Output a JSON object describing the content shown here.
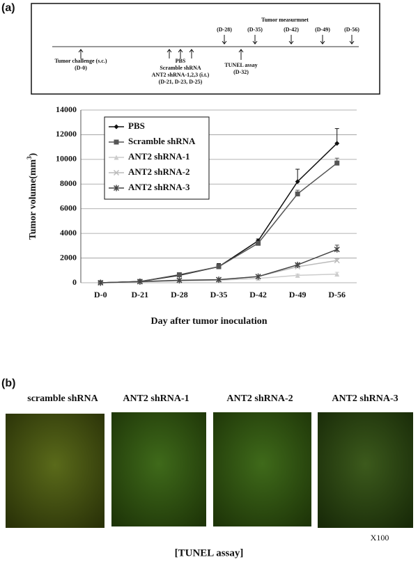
{
  "panel_a_label": "(a)",
  "panel_b_label": "(b)",
  "timeline": {
    "header": "Tumor measurmnet",
    "top_labels": [
      "(D-28)",
      "(D-35)",
      "(D-42)",
      "(D-49)",
      "(D-56)"
    ],
    "challenge": [
      "Tumor challenge (s.c.)",
      "(D-0)"
    ],
    "treatment": [
      "PBS",
      "Scramble shRNA",
      "ANT2 shRNA-1,2,3 (i.t.)",
      "(D-21, D-23, D-25)"
    ],
    "tunel": [
      "TUNEL assay",
      "(D-32)"
    ]
  },
  "chart_data": {
    "type": "line",
    "y_label": {
      "text": "Tumor volume(mm",
      "sup": "3",
      "end": ")"
    },
    "x_label": "Day after tumor inoculation",
    "categories": [
      "D-0",
      "D-21",
      "D-28",
      "D-35",
      "D-42",
      "D-49",
      "D-56"
    ],
    "ylim": [
      0,
      14000
    ],
    "yticks": [
      0,
      2000,
      4000,
      6000,
      8000,
      10000,
      12000,
      14000
    ],
    "grid": true,
    "legend": "top-left",
    "series": [
      {
        "name": "PBS",
        "color": "#111111",
        "marker": "diamond",
        "values": [
          0,
          100,
          600,
          1300,
          3400,
          8200,
          11300
        ],
        "errors": [
          0,
          0,
          100,
          250,
          150,
          1000,
          1200
        ]
      },
      {
        "name": "Scramble shRNA",
        "color": "#555555",
        "marker": "square",
        "values": [
          0,
          100,
          650,
          1300,
          3200,
          7200,
          9700
        ],
        "errors": [
          0,
          0,
          100,
          200,
          150,
          300,
          400
        ]
      },
      {
        "name": "ANT2 shRNA-1",
        "color": "#cccccc",
        "marker": "triangle",
        "values": [
          0,
          80,
          150,
          200,
          350,
          600,
          700
        ],
        "errors": [
          0,
          0,
          0,
          0,
          0,
          100,
          150
        ]
      },
      {
        "name": "ANT2 shRNA-2",
        "color": "#bbbbbb",
        "marker": "x",
        "values": [
          0,
          80,
          200,
          250,
          500,
          1300,
          1800
        ],
        "errors": [
          0,
          0,
          0,
          0,
          0,
          100,
          150
        ]
      },
      {
        "name": "ANT2 shRNA-3",
        "color": "#444444",
        "marker": "star",
        "values": [
          0,
          90,
          200,
          250,
          500,
          1450,
          2700
        ],
        "errors": [
          0,
          0,
          0,
          0,
          0,
          100,
          350
        ]
      }
    ]
  },
  "images": {
    "titles": [
      "scramble shRNA",
      "ANT2 shRNA-1",
      "ANT2 shRNA-2",
      "ANT2 shRNA-3"
    ],
    "caption": "[TUNEL assay]",
    "magnification": "X100"
  }
}
